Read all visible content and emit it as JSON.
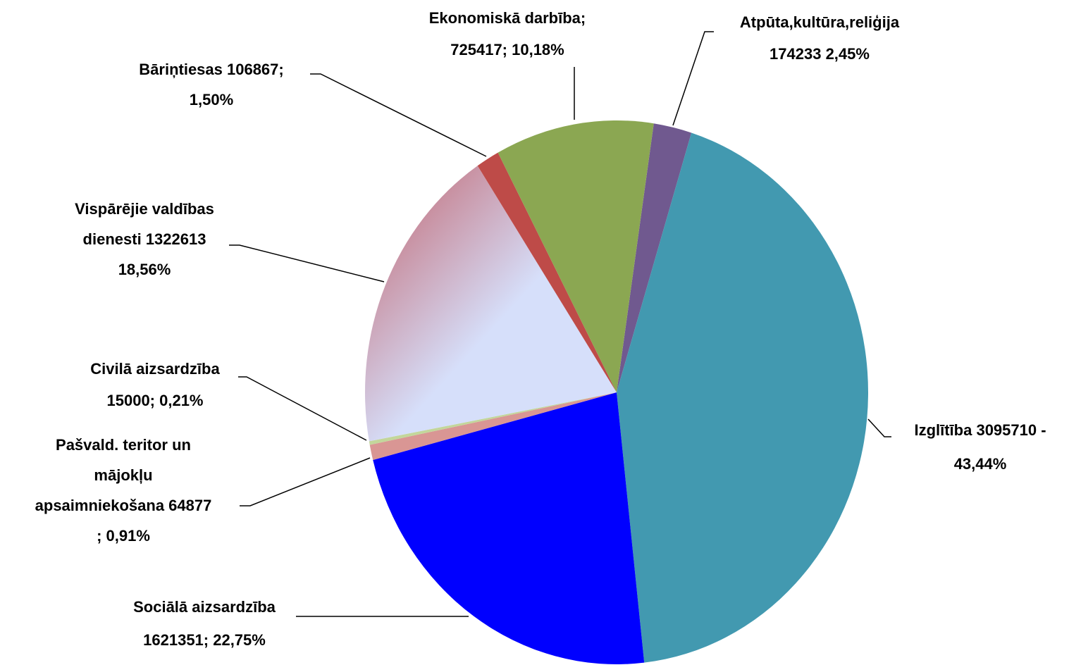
{
  "chart_data": {
    "type": "pie",
    "categories": [
      [
        "Atpūta,kultūra,reliģija",
        "174233 2,45%"
      ],
      [
        "Izglītība 3095710 -",
        "43,44%"
      ],
      [
        "Sociālā aizsardzība",
        "1621351; 22,75%"
      ],
      [
        "Pašvald. teritor un",
        "mājokļu",
        "apsaimniekošana 64877",
        "; 0,91%"
      ],
      [
        "Civilā aizsardzība",
        "15000; 0,21%"
      ],
      [
        "Vispārējie valdības",
        "dienesti  1322613",
        "18,56%"
      ],
      [
        "Bāriņtiesas  106867;",
        "1,50%"
      ],
      [
        "Ekonomiskā darbība;",
        "725417; 10,18%"
      ]
    ],
    "values": [
      174233,
      3095710,
      1621351,
      64877,
      15000,
      1322613,
      106867,
      725417
    ],
    "colors": [
      "#70598f",
      "#4299b0",
      "#0000ff",
      "#d99694",
      "#c3d69b",
      "#d6dffa",
      "#be4b48",
      "#8ba752"
    ]
  }
}
